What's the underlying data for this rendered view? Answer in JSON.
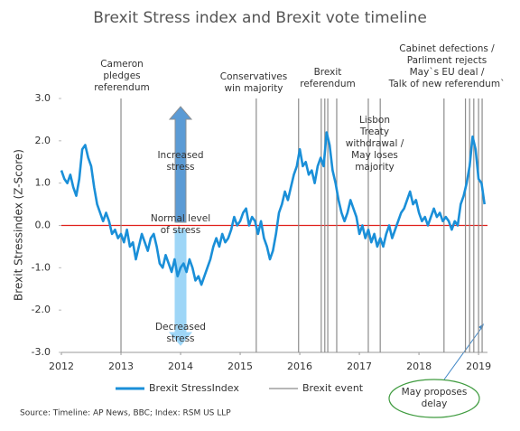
{
  "chart_data": {
    "type": "line",
    "title": "Brexit Stress index and Brexit vote timeline",
    "y_label": "Brexit Stressindex (Z-Score)",
    "xlim": [
      2012,
      2019.15
    ],
    "xticks": [
      2012,
      2013,
      2014,
      2015,
      2016,
      2017,
      2018,
      2019
    ],
    "ylim": [
      -3,
      3
    ],
    "yticks": [
      {
        "value": 3,
        "label": "3.0"
      },
      {
        "value": 2,
        "label": "2.0"
      },
      {
        "value": 1,
        "label": "1.0"
      },
      {
        "value": 0,
        "label": "0.0"
      },
      {
        "value": -1,
        "label": "-1.0"
      },
      {
        "value": -2,
        "label": "-2.0"
      },
      {
        "value": -3,
        "label": "-3.0"
      }
    ],
    "reference_line": {
      "value": 0,
      "color": "#e0201b"
    },
    "series": [
      {
        "name": "Brexit StressIndex",
        "color": "#1a8fd8",
        "x": [
          2012,
          2012.05,
          2012.1,
          2012.15,
          2012.2,
          2012.25,
          2012.3,
          2012.35,
          2012.4,
          2012.45,
          2012.5,
          2012.55,
          2012.6,
          2012.65,
          2012.7,
          2012.75,
          2012.8,
          2012.85,
          2012.9,
          2012.95,
          2013,
          2013.05,
          2013.1,
          2013.15,
          2013.2,
          2013.25,
          2013.3,
          2013.35,
          2013.4,
          2013.45,
          2013.5,
          2013.55,
          2013.6,
          2013.65,
          2013.7,
          2013.75,
          2013.8,
          2013.85,
          2013.9,
          2013.95,
          2014,
          2014.05,
          2014.1,
          2014.15,
          2014.2,
          2014.25,
          2014.3,
          2014.35,
          2014.4,
          2014.45,
          2014.5,
          2014.55,
          2014.6,
          2014.65,
          2014.7,
          2014.75,
          2014.8,
          2014.85,
          2014.9,
          2014.95,
          2015,
          2015.05,
          2015.1,
          2015.15,
          2015.2,
          2015.25,
          2015.3,
          2015.35,
          2015.4,
          2015.45,
          2015.5,
          2015.55,
          2015.6,
          2015.65,
          2015.7,
          2015.75,
          2015.8,
          2015.85,
          2015.9,
          2015.95,
          2016,
          2016.05,
          2016.1,
          2016.15,
          2016.2,
          2016.25,
          2016.3,
          2016.35,
          2016.4,
          2016.45,
          2016.5,
          2016.55,
          2016.6,
          2016.65,
          2016.7,
          2016.75,
          2016.8,
          2016.85,
          2016.9,
          2016.95,
          2017,
          2017.05,
          2017.1,
          2017.15,
          2017.2,
          2017.25,
          2017.3,
          2017.35,
          2017.4,
          2017.45,
          2017.5,
          2017.55,
          2017.6,
          2017.65,
          2017.7,
          2017.75,
          2017.8,
          2017.85,
          2017.9,
          2017.95,
          2018,
          2018.05,
          2018.1,
          2018.15,
          2018.2,
          2018.25,
          2018.3,
          2018.35,
          2018.4,
          2018.45,
          2018.5,
          2018.55,
          2018.6,
          2018.65,
          2018.7,
          2018.75,
          2018.8,
          2018.85,
          2018.9,
          2018.95,
          2019,
          2019.05,
          2019.1
        ],
        "values": [
          1.3,
          1.1,
          1.0,
          1.2,
          0.9,
          0.7,
          1.1,
          1.8,
          1.9,
          1.6,
          1.4,
          0.9,
          0.5,
          0.3,
          0.1,
          0.3,
          0.1,
          -0.2,
          -0.1,
          -0.3,
          -0.2,
          -0.4,
          -0.1,
          -0.5,
          -0.4,
          -0.8,
          -0.5,
          -0.2,
          -0.4,
          -0.6,
          -0.3,
          -0.2,
          -0.5,
          -0.9,
          -1.0,
          -0.7,
          -0.9,
          -1.1,
          -0.8,
          -1.2,
          -1.0,
          -0.9,
          -1.1,
          -0.8,
          -1.0,
          -1.3,
          -1.2,
          -1.4,
          -1.2,
          -1.0,
          -0.8,
          -0.5,
          -0.3,
          -0.5,
          -0.2,
          -0.4,
          -0.3,
          -0.1,
          0.2,
          0.0,
          0.1,
          0.3,
          0.4,
          0.0,
          0.2,
          0.1,
          -0.2,
          0.1,
          -0.3,
          -0.5,
          -0.8,
          -0.6,
          -0.2,
          0.3,
          0.5,
          0.8,
          0.6,
          0.9,
          1.2,
          1.4,
          1.8,
          1.4,
          1.5,
          1.2,
          1.3,
          1.0,
          1.4,
          1.6,
          1.4,
          2.2,
          1.9,
          1.3,
          1.0,
          0.6,
          0.3,
          0.1,
          0.3,
          0.6,
          0.4,
          0.2,
          -0.2,
          0.0,
          -0.3,
          -0.1,
          -0.4,
          -0.2,
          -0.5,
          -0.3,
          -0.5,
          -0.2,
          0.0,
          -0.3,
          -0.1,
          0.1,
          0.3,
          0.4,
          0.6,
          0.8,
          0.5,
          0.6,
          0.3,
          0.1,
          0.2,
          0.0,
          0.2,
          0.4,
          0.2,
          0.3,
          0.1,
          0.2,
          0.1,
          -0.1,
          0.1,
          0.0,
          0.5,
          0.7,
          1.0,
          1.4,
          2.1,
          1.8,
          1.1,
          1.0,
          0.5
        ]
      }
    ],
    "events": {
      "name": "Brexit event",
      "color": "#8c8c8c",
      "x": [
        2013.0,
        2015.27,
        2015.98,
        2016.36,
        2016.42,
        2016.47,
        2016.62,
        2017.15,
        2017.35,
        2018.42,
        2018.78,
        2018.85,
        2018.92,
        2019.0,
        2019.06
      ]
    },
    "annotations": [
      [
        "Cameron",
        "pledges",
        "referendum"
      ],
      [
        "Conservatives",
        "win majority"
      ],
      [
        "Brexit",
        "referendum"
      ],
      [
        "Lisbon",
        "Treaty",
        "withdrawal /",
        "May loses",
        "majority"
      ],
      [
        "Cabinet defections /",
        "Parliment rejects",
        "May`s EU deal /",
        "Talk of new referendum`"
      ],
      [
        "Increased",
        "stress"
      ],
      [
        "Normal level",
        "of stress"
      ],
      [
        "Decreased",
        "stress"
      ],
      [
        "May proposes",
        "delay"
      ]
    ],
    "source": "Source: Timeline: AP News, BBC; Index: RSM US LLP"
  }
}
